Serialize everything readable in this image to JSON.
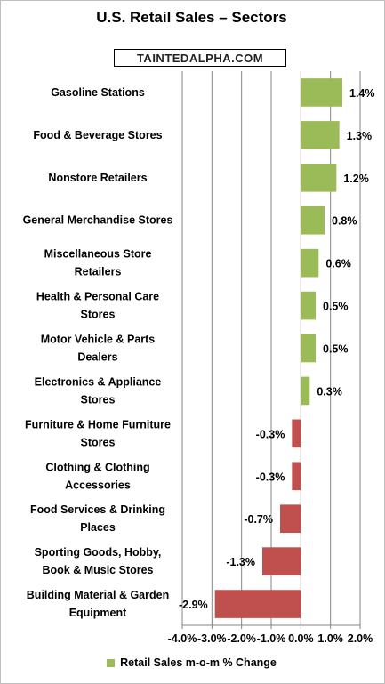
{
  "brand": "TAINTEDALPHA.COM",
  "colors": {
    "positive": "#9bbb59",
    "negative": "#c0504d",
    "grid": "#868686"
  },
  "chart_data": {
    "type": "bar",
    "orientation": "horizontal",
    "title": "U.S. Retail Sales – Sectors",
    "categories": [
      [
        "Gasoline Stations"
      ],
      [
        "Food & Beverage Stores"
      ],
      [
        "Nonstore Retailers"
      ],
      [
        "General Merchandise Stores"
      ],
      [
        "Miscellaneous Store",
        "Retailers"
      ],
      [
        "Health & Personal Care",
        "Stores"
      ],
      [
        "Motor Vehicle & Parts",
        "Dealers"
      ],
      [
        "Electronics & Appliance",
        "Stores"
      ],
      [
        "Furniture & Home Furniture",
        "Stores"
      ],
      [
        "Clothing & Clothing",
        "Accessories"
      ],
      [
        "Food Services & Drinking",
        "Places"
      ],
      [
        "Sporting Goods, Hobby,",
        "Book & Music Stores"
      ],
      [
        "Building Material & Garden",
        "Equipment"
      ]
    ],
    "series": [
      {
        "name": "Retail Sales m-o-m % Change",
        "values": [
          1.4,
          1.3,
          1.2,
          0.8,
          0.6,
          0.5,
          0.5,
          0.3,
          -0.3,
          -0.3,
          -0.7,
          -1.3,
          -2.9
        ],
        "labels": [
          "1.4%",
          "1.3%",
          "1.2%",
          "0.8%",
          "0.6%",
          "0.5%",
          "0.5%",
          "0.3%",
          "-0.3%",
          "-0.3%",
          "-0.7%",
          "-1.3%",
          "-2.9%"
        ]
      }
    ],
    "xlim": [
      -4.0,
      2.0
    ],
    "xticks": [
      -4.0,
      -3.0,
      -2.0,
      -1.0,
      0.0,
      1.0,
      2.0
    ],
    "xtick_labels": [
      "-4.0%",
      "-3.0%",
      "-2.0%",
      "-1.0%",
      "0.0%",
      "1.0%",
      "2.0%"
    ],
    "grid": true,
    "legend": "bottom"
  }
}
